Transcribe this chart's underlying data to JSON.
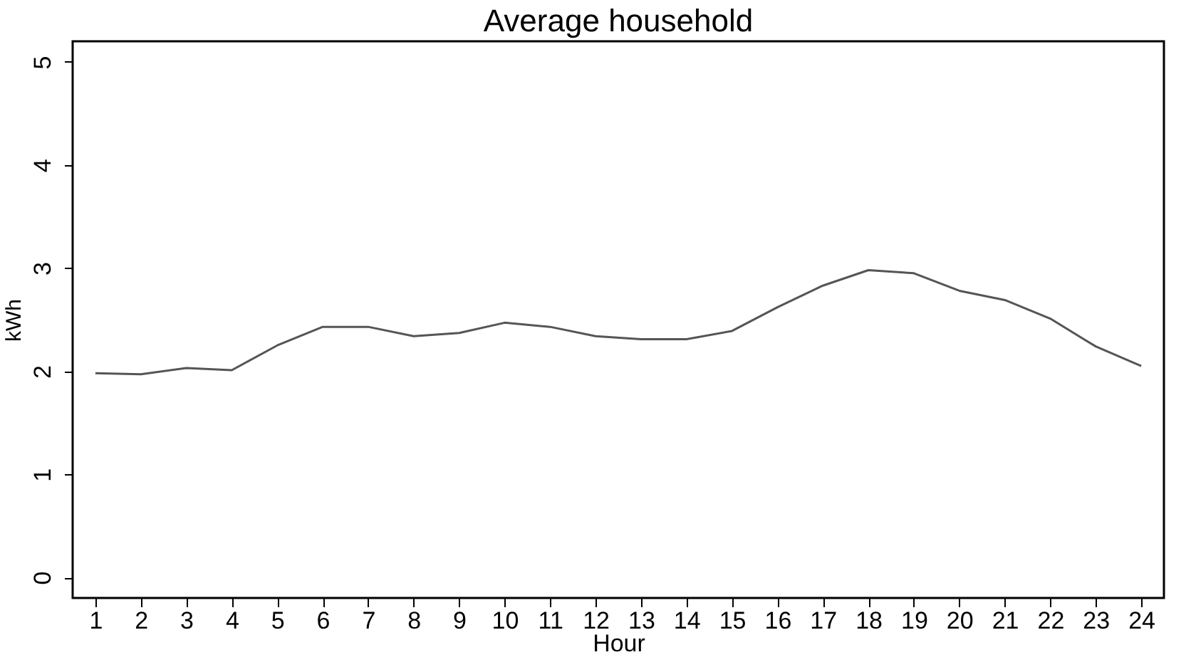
{
  "chart_data": {
    "type": "line",
    "title": "Average household",
    "xlabel": "Hour",
    "ylabel": "kWh",
    "x": [
      1,
      2,
      3,
      4,
      5,
      6,
      7,
      8,
      9,
      10,
      11,
      12,
      13,
      14,
      15,
      16,
      17,
      18,
      19,
      20,
      21,
      22,
      23,
      24
    ],
    "series": [
      {
        "color": "#555555",
        "values": [
          1.98,
          1.97,
          2.03,
          2.01,
          2.25,
          2.43,
          2.43,
          2.34,
          2.37,
          2.47,
          2.43,
          2.34,
          2.31,
          2.31,
          2.39,
          2.62,
          2.83,
          2.98,
          2.95,
          2.78,
          2.69,
          2.51,
          2.24,
          2.05
        ]
      }
    ],
    "xlim": [
      0.5,
      24.5
    ],
    "xticks": [
      1,
      2,
      3,
      4,
      5,
      6,
      7,
      8,
      9,
      10,
      11,
      12,
      13,
      14,
      15,
      16,
      17,
      18,
      19,
      20,
      21,
      22,
      23,
      24
    ],
    "ylim": [
      -0.2,
      5.2
    ],
    "yticks": [
      0,
      1,
      2,
      3,
      4,
      5
    ],
    "grid": false,
    "marker": "none",
    "line_style": "solid"
  }
}
